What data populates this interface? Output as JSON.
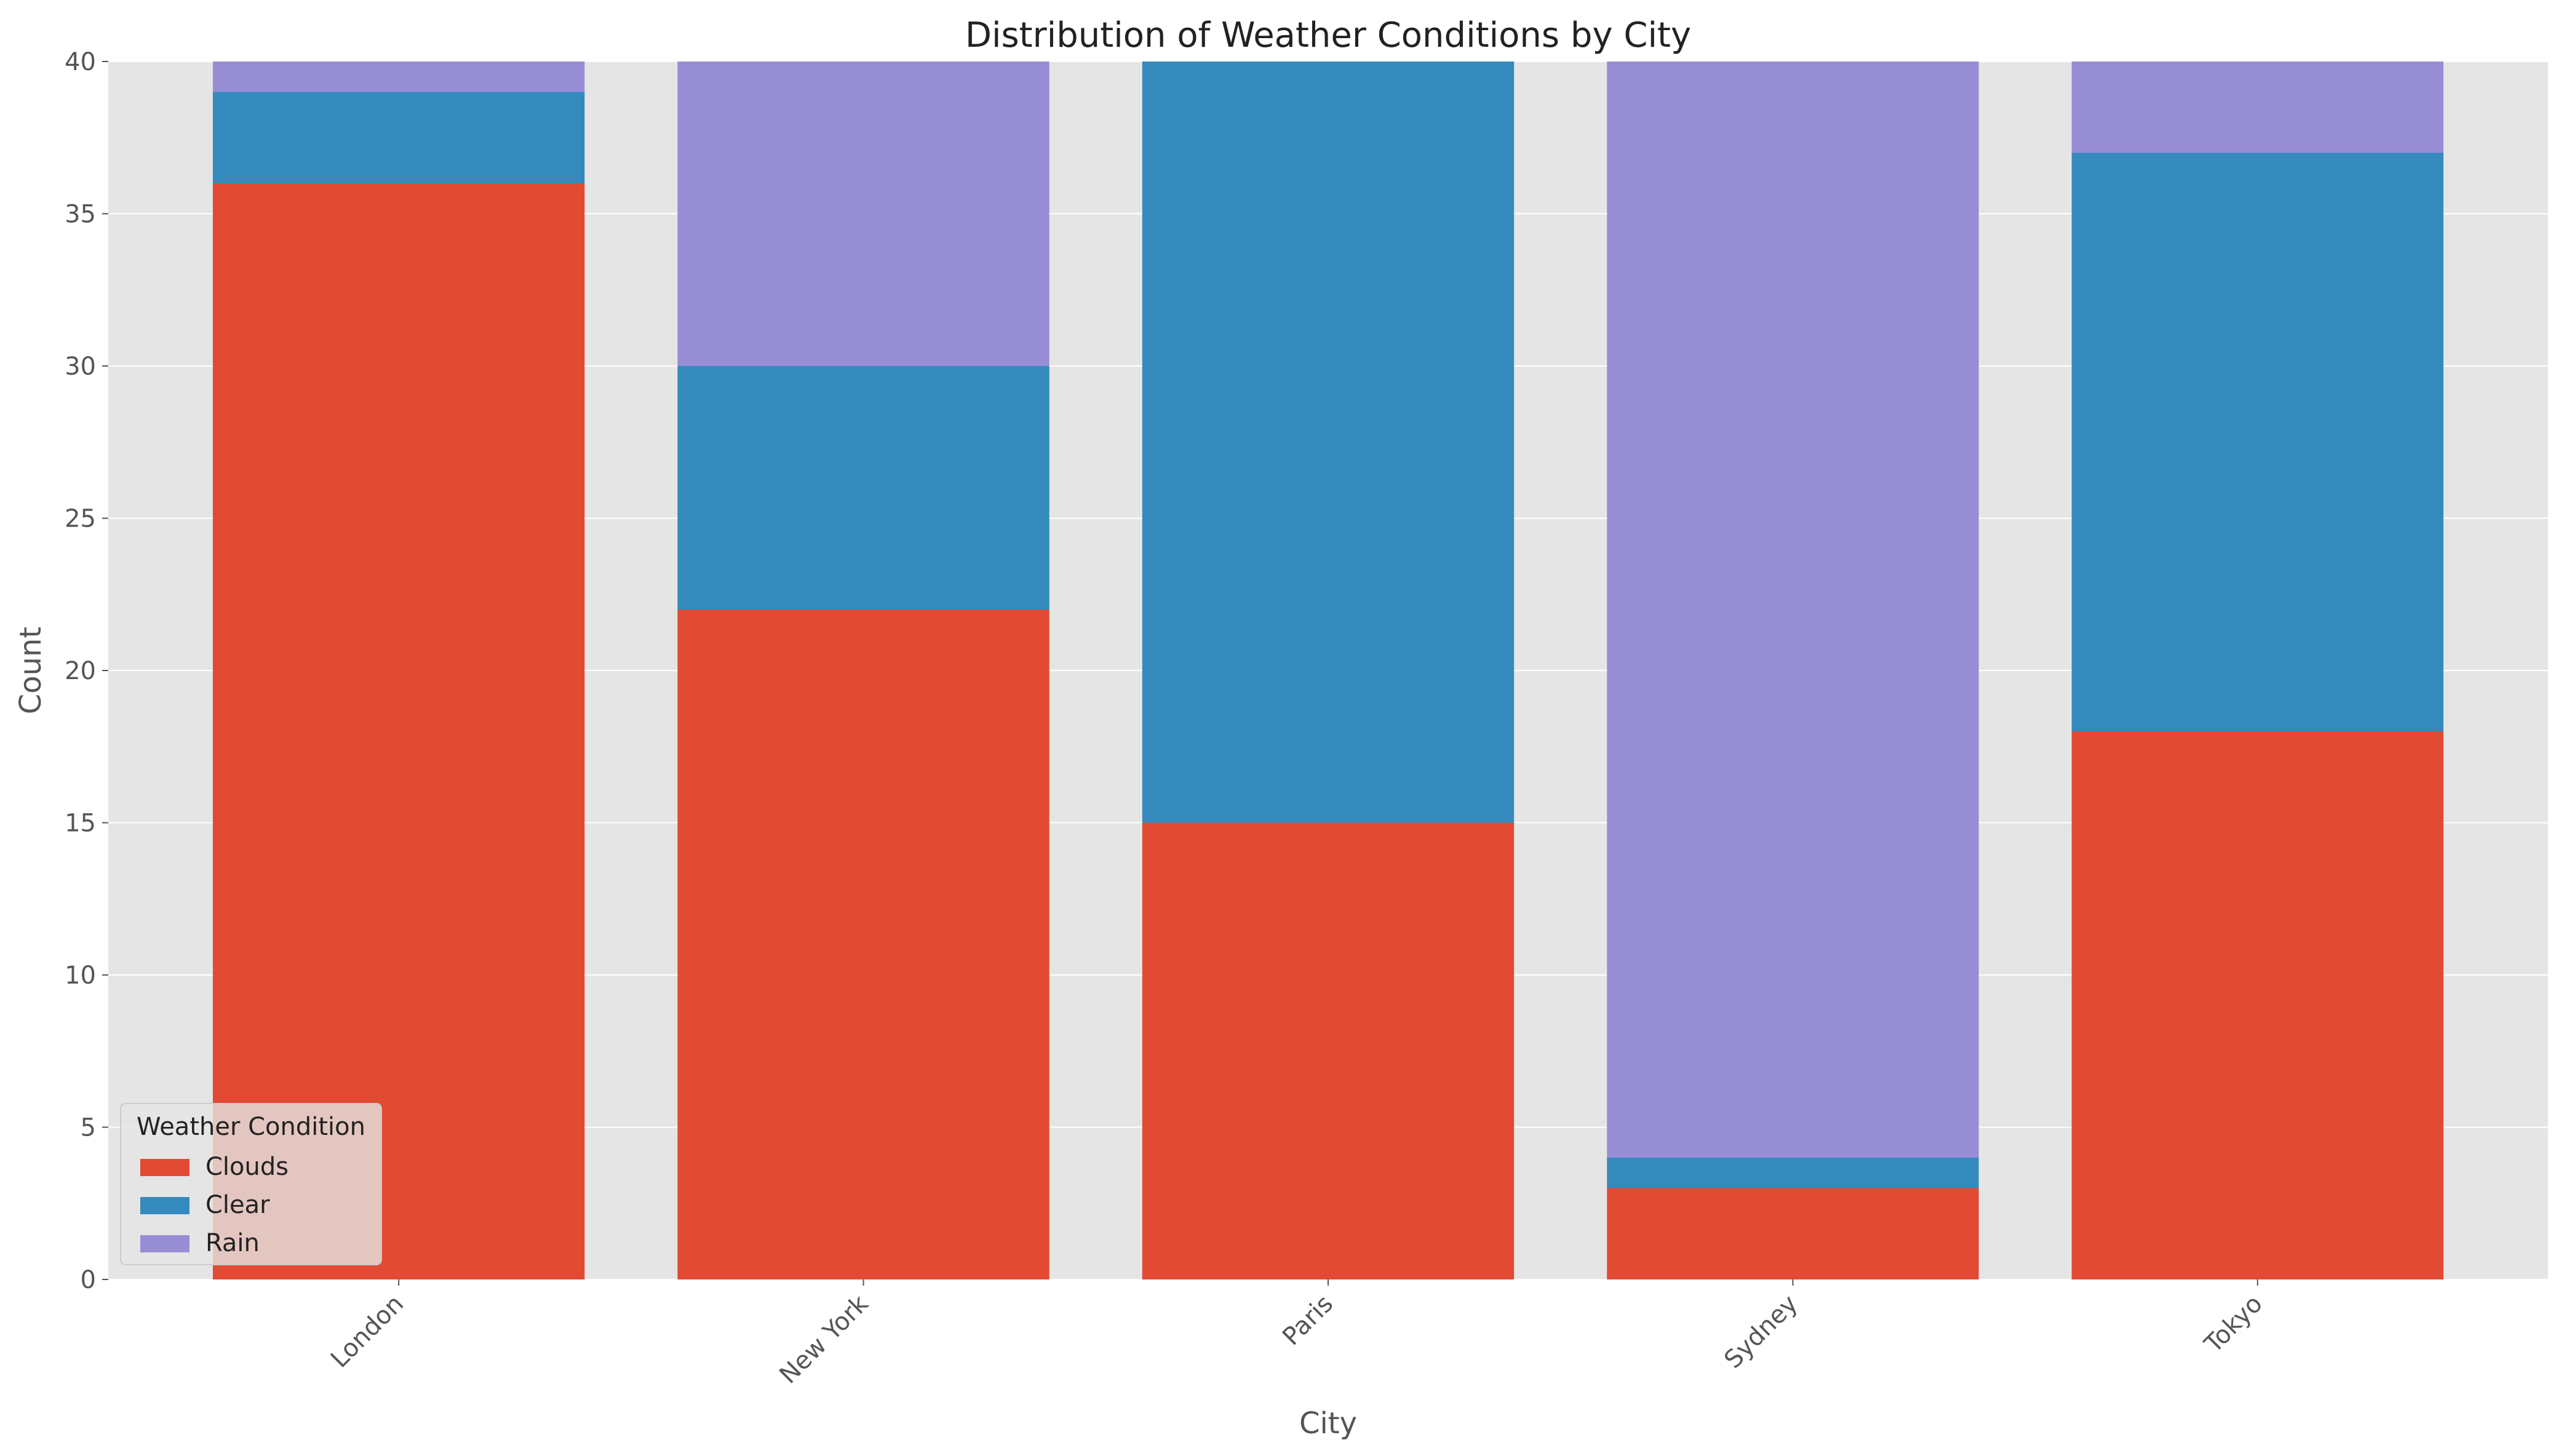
{
  "chart_data": {
    "type": "bar",
    "stacked": true,
    "title": "Distribution of Weather Conditions by City",
    "xlabel": "City",
    "ylabel": "Count",
    "categories": [
      "London",
      "New York",
      "Paris",
      "Sydney",
      "Tokyo"
    ],
    "series": [
      {
        "name": "Clouds",
        "color": "#E24A33",
        "values": [
          36,
          22,
          15,
          3,
          18
        ]
      },
      {
        "name": "Clear",
        "color": "#348ABD",
        "values": [
          3,
          8,
          25,
          1,
          19
        ]
      },
      {
        "name": "Rain",
        "color": "#988ED5",
        "values": [
          1,
          10,
          0,
          36,
          3
        ]
      }
    ],
    "ylim": [
      0,
      40
    ],
    "yticks": [
      0,
      5,
      10,
      15,
      20,
      25,
      30,
      35,
      40
    ],
    "grid": true,
    "legend": {
      "title": "Weather Condition",
      "placement": "lower-left"
    },
    "background_color": "#E5E5E5"
  }
}
